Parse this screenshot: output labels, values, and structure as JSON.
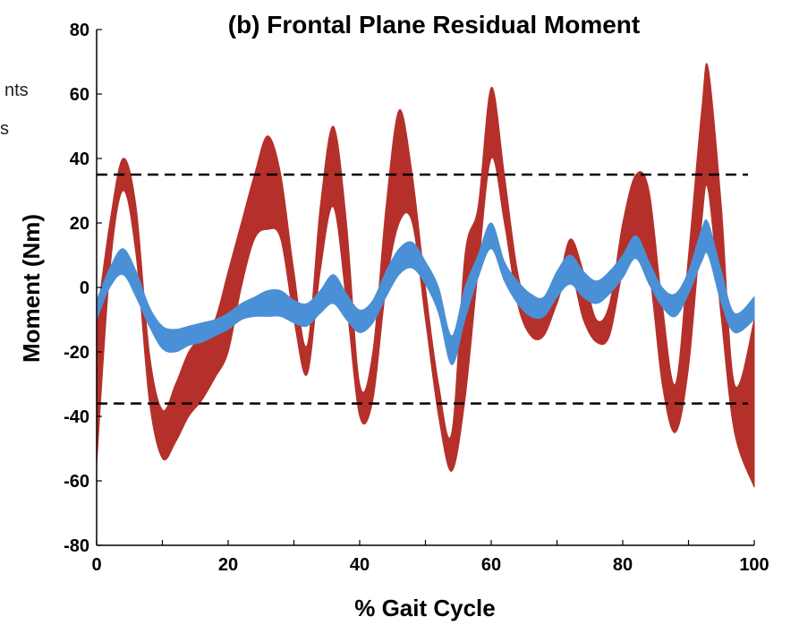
{
  "legend_fragments": [
    "nts",
    "s"
  ],
  "chart_data": {
    "type": "area",
    "title": "(b) Frontal Plane Residual Moment",
    "xlabel": "% Gait Cycle",
    "ylabel": "Moment (Nm)",
    "xlim": [
      0,
      100
    ],
    "ylim": [
      -80,
      80
    ],
    "x_ticks": [
      0,
      20,
      40,
      60,
      80,
      100
    ],
    "y_ticks": [
      -80,
      -60,
      -40,
      -20,
      0,
      20,
      40,
      60,
      80
    ],
    "x_tick_labels": [
      "0",
      "20",
      "40",
      "60",
      "80",
      "100"
    ],
    "y_tick_labels": [
      "-80",
      "-60",
      "-40",
      "-20",
      "0",
      "20",
      "40",
      "60",
      "80"
    ],
    "grid": false,
    "reference_lines": [
      35,
      -36
    ],
    "series": [
      {
        "color": "#b5302a",
        "x": [
          0,
          2,
          4,
          6,
          8,
          10,
          12,
          14,
          16,
          18,
          20,
          22,
          24,
          26,
          28,
          30,
          32,
          34,
          36,
          38,
          40,
          42,
          44,
          46,
          48,
          50,
          52,
          54,
          56,
          58,
          60,
          62,
          64,
          66,
          68,
          70,
          72,
          74,
          76,
          78,
          80,
          82,
          84,
          86,
          88,
          90,
          92,
          93,
          95,
          97,
          100
        ],
        "upper": [
          -10,
          20,
          40,
          25,
          -20,
          -38,
          -30,
          -20,
          -15,
          -10,
          5,
          20,
          35,
          47,
          35,
          5,
          -18,
          25,
          50,
          20,
          -30,
          -20,
          25,
          55,
          35,
          0,
          -30,
          -45,
          10,
          25,
          62,
          35,
          5,
          -8,
          -5,
          0,
          15,
          5,
          -10,
          -5,
          20,
          35,
          30,
          -5,
          -30,
          10,
          55,
          68,
          25,
          -30,
          -10
        ],
        "lower": [
          -55,
          5,
          30,
          10,
          -35,
          -53,
          -48,
          -40,
          -35,
          -28,
          -20,
          0,
          15,
          18,
          15,
          -10,
          -27,
          5,
          25,
          -5,
          -40,
          -35,
          0,
          20,
          20,
          -10,
          -40,
          -57,
          -35,
          5,
          40,
          20,
          -5,
          -15,
          -15,
          -5,
          5,
          -10,
          -17,
          -15,
          5,
          15,
          5,
          -30,
          -45,
          -25,
          20,
          30,
          -10,
          -45,
          -62
        ]
      },
      {
        "color": "#4a90d6",
        "x": [
          0,
          2,
          4,
          6,
          8,
          10,
          12,
          14,
          16,
          18,
          20,
          22,
          24,
          26,
          28,
          30,
          32,
          34,
          36,
          38,
          40,
          42,
          44,
          46,
          48,
          50,
          52,
          54,
          56,
          58,
          60,
          62,
          64,
          66,
          68,
          70,
          72,
          74,
          76,
          78,
          80,
          82,
          84,
          86,
          88,
          90,
          92,
          93,
          95,
          97,
          100
        ],
        "upper": [
          -4,
          6,
          12,
          5,
          -6,
          -12,
          -13,
          -12,
          -11,
          -10,
          -8,
          -5,
          -3,
          -1,
          -1,
          -4,
          -5,
          -1,
          4,
          -2,
          -7,
          -4,
          5,
          12,
          14,
          8,
          0,
          -15,
          0,
          10,
          20,
          8,
          2,
          -2,
          -3,
          5,
          10,
          5,
          2,
          5,
          10,
          16,
          8,
          0,
          -2,
          5,
          18,
          20,
          5,
          -8,
          -3
        ],
        "lower": [
          -10,
          0,
          4,
          -3,
          -12,
          -19,
          -20,
          -18,
          -17,
          -15,
          -13,
          -10,
          -9,
          -9,
          -9,
          -11,
          -12,
          -8,
          -5,
          -10,
          -14,
          -11,
          -3,
          4,
          6,
          1,
          -8,
          -24,
          -10,
          3,
          12,
          2,
          -5,
          -9,
          -9,
          -3,
          1,
          -3,
          -5,
          -2,
          3,
          9,
          1,
          -6,
          -9,
          -2,
          8,
          10,
          -5,
          -14,
          -10
        ]
      }
    ]
  }
}
